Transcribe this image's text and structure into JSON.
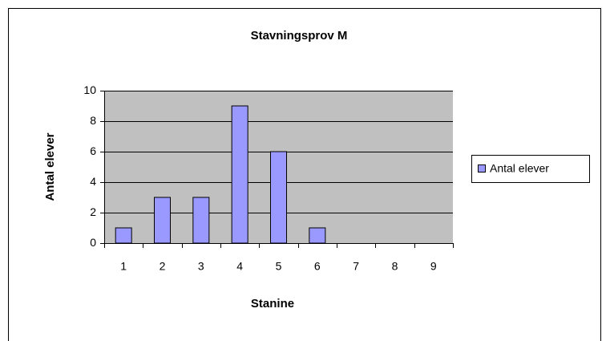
{
  "chart_data": {
    "type": "bar",
    "title": "Stavningsprov M",
    "x_label": "Stanine",
    "y_label": "Antal elever",
    "categories": [
      "1",
      "2",
      "3",
      "4",
      "5",
      "6",
      "7",
      "8",
      "9"
    ],
    "series": [
      {
        "name": "Antal elever",
        "color": "#9999ff",
        "values": [
          1,
          3,
          3,
          9,
          6,
          1,
          0,
          0,
          0
        ]
      }
    ],
    "ylim": [
      0,
      10
    ],
    "yticks": [
      0,
      2,
      4,
      6,
      8,
      10
    ],
    "grid": true,
    "legend": "right"
  }
}
